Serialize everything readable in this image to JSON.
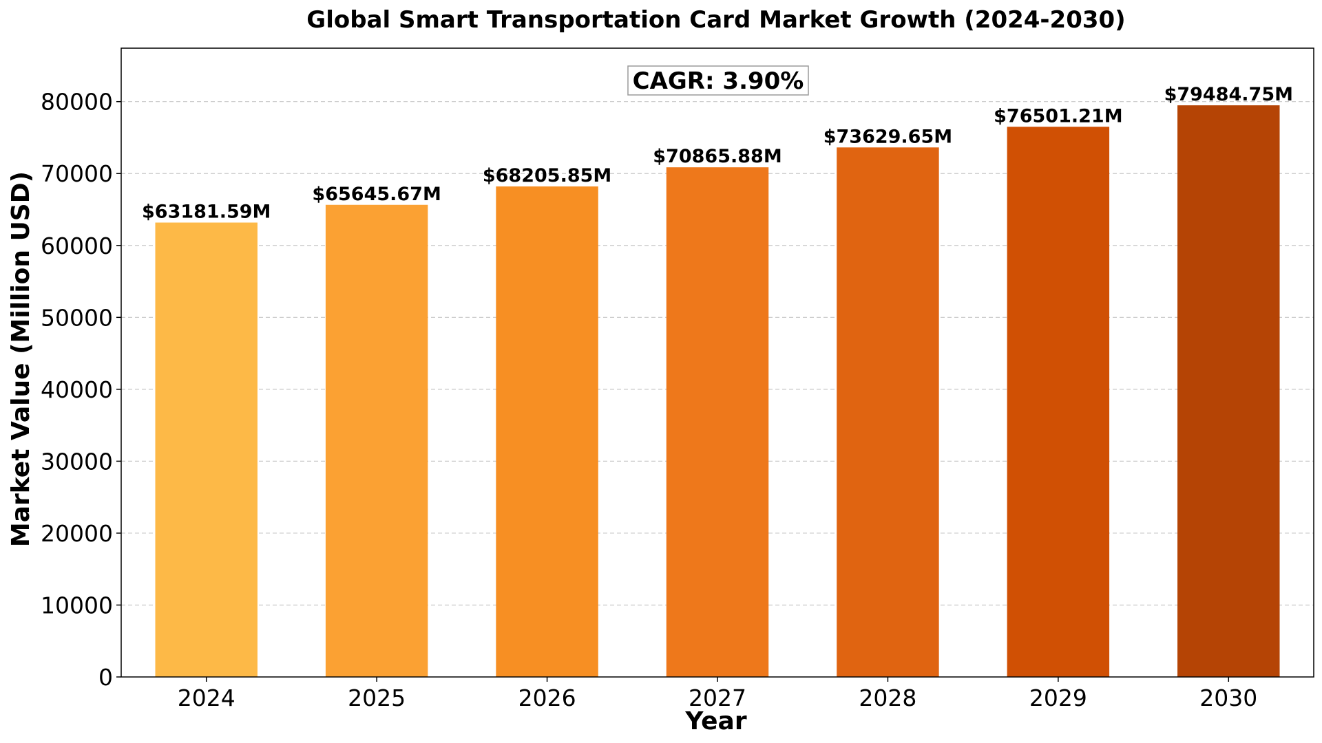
{
  "chart_data": {
    "type": "bar",
    "title": "Global Smart Transportation Card Market Growth (2024-2030)",
    "xlabel": "Year",
    "ylabel": "Market Value (Million USD)",
    "categories": [
      "2024",
      "2025",
      "2026",
      "2027",
      "2028",
      "2029",
      "2030"
    ],
    "values": [
      63181.59,
      65645.67,
      68205.85,
      70865.88,
      73629.65,
      76501.21,
      79484.75
    ],
    "data_labels": [
      "$63181.59M",
      "$65645.67M",
      "$68205.85M",
      "$70865.88M",
      "$73629.65M",
      "$76501.21M",
      "$79484.75M"
    ],
    "bar_colors": [
      "#fdb947",
      "#fba133",
      "#f78f23",
      "#ee781b",
      "#e06411",
      "#d05004",
      "#b54405"
    ],
    "ylim": [
      0,
      87433
    ],
    "yticks": [
      0,
      10000,
      20000,
      30000,
      40000,
      50000,
      60000,
      70000,
      80000
    ],
    "ytick_labels": [
      "0",
      "10000",
      "20000",
      "30000",
      "40000",
      "50000",
      "60000",
      "70000",
      "80000"
    ],
    "grid": "y-dashed",
    "annotation": "CAGR: 3.90%"
  }
}
